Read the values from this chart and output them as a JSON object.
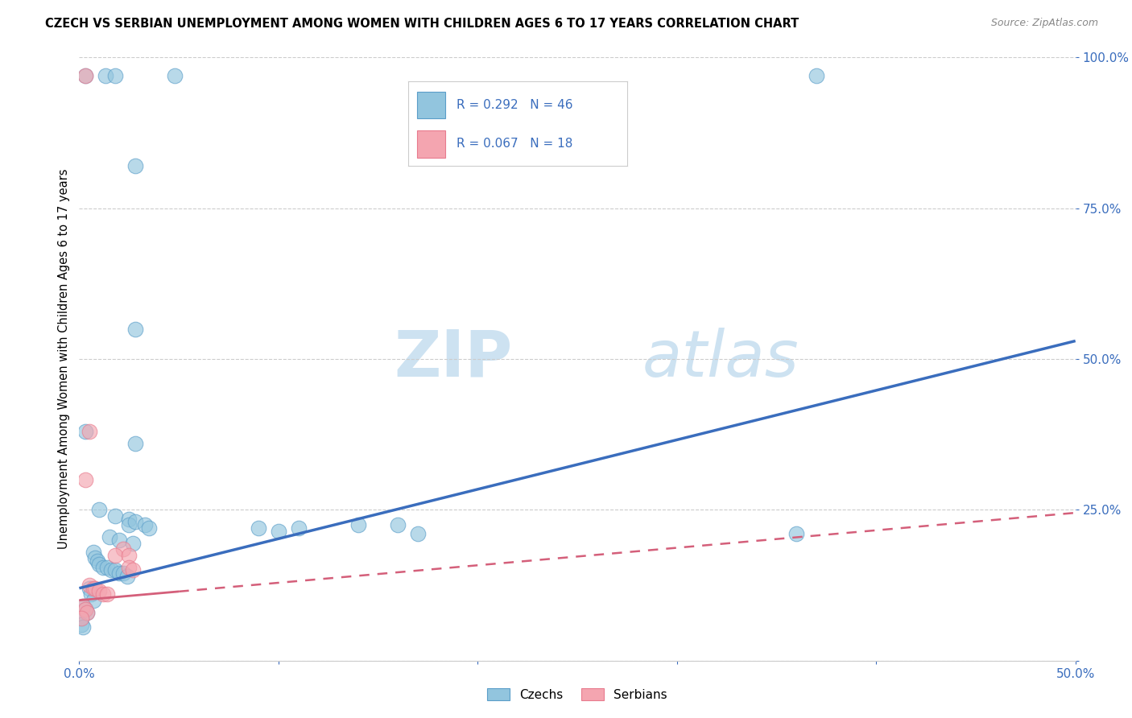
{
  "title": "CZECH VS SERBIAN UNEMPLOYMENT AMONG WOMEN WITH CHILDREN AGES 6 TO 17 YEARS CORRELATION CHART",
  "source": "Source: ZipAtlas.com",
  "ylabel": "Unemployment Among Women with Children Ages 6 to 17 years",
  "x_min": 0.0,
  "x_max": 0.5,
  "y_min": 0.0,
  "y_max": 1.0,
  "y_ticks": [
    0.0,
    0.25,
    0.5,
    0.75,
    1.0
  ],
  "y_tick_labels": [
    "",
    "25.0%",
    "50.0%",
    "75.0%",
    "100.0%"
  ],
  "watermark_zip": "ZIP",
  "watermark_atlas": "atlas",
  "legend_text1": "R = 0.292   N = 46",
  "legend_text2": "R = 0.067   N = 18",
  "czech_color": "#92c5de",
  "serbian_color": "#f4a5b0",
  "czech_edge_color": "#5b9ec9",
  "serbian_edge_color": "#e87b8e",
  "czech_line_color": "#3a6dbd",
  "serbian_line_color": "#d45f7a",
  "czech_scatter": [
    [
      0.003,
      0.97
    ],
    [
      0.013,
      0.97
    ],
    [
      0.018,
      0.97
    ],
    [
      0.048,
      0.97
    ],
    [
      0.37,
      0.97
    ],
    [
      0.028,
      0.82
    ],
    [
      0.028,
      0.55
    ],
    [
      0.003,
      0.38
    ],
    [
      0.028,
      0.36
    ],
    [
      0.01,
      0.25
    ],
    [
      0.018,
      0.24
    ],
    [
      0.025,
      0.235
    ],
    [
      0.025,
      0.225
    ],
    [
      0.028,
      0.23
    ],
    [
      0.033,
      0.225
    ],
    [
      0.035,
      0.22
    ],
    [
      0.09,
      0.22
    ],
    [
      0.1,
      0.215
    ],
    [
      0.11,
      0.22
    ],
    [
      0.14,
      0.225
    ],
    [
      0.16,
      0.225
    ],
    [
      0.17,
      0.21
    ],
    [
      0.36,
      0.21
    ],
    [
      0.015,
      0.205
    ],
    [
      0.02,
      0.2
    ],
    [
      0.027,
      0.195
    ],
    [
      0.007,
      0.18
    ],
    [
      0.008,
      0.17
    ],
    [
      0.009,
      0.165
    ],
    [
      0.01,
      0.16
    ],
    [
      0.012,
      0.155
    ],
    [
      0.014,
      0.155
    ],
    [
      0.016,
      0.15
    ],
    [
      0.018,
      0.15
    ],
    [
      0.02,
      0.145
    ],
    [
      0.022,
      0.145
    ],
    [
      0.024,
      0.14
    ],
    [
      0.005,
      0.12
    ],
    [
      0.006,
      0.11
    ],
    [
      0.007,
      0.1
    ],
    [
      0.002,
      0.09
    ],
    [
      0.003,
      0.085
    ],
    [
      0.004,
      0.08
    ],
    [
      0.001,
      0.07
    ],
    [
      0.001,
      0.06
    ],
    [
      0.002,
      0.055
    ]
  ],
  "serbian_scatter": [
    [
      0.003,
      0.97
    ],
    [
      0.005,
      0.38
    ],
    [
      0.003,
      0.3
    ],
    [
      0.022,
      0.185
    ],
    [
      0.018,
      0.175
    ],
    [
      0.025,
      0.175
    ],
    [
      0.025,
      0.155
    ],
    [
      0.027,
      0.15
    ],
    [
      0.005,
      0.125
    ],
    [
      0.007,
      0.12
    ],
    [
      0.008,
      0.12
    ],
    [
      0.01,
      0.115
    ],
    [
      0.012,
      0.11
    ],
    [
      0.014,
      0.11
    ],
    [
      0.002,
      0.09
    ],
    [
      0.003,
      0.085
    ],
    [
      0.004,
      0.08
    ],
    [
      0.001,
      0.07
    ]
  ],
  "czech_line_x": [
    0.0,
    0.5
  ],
  "czech_line_y": [
    0.12,
    0.53
  ],
  "serbian_line_x": [
    0.0,
    0.5
  ],
  "serbian_line_y": [
    0.1,
    0.245
  ]
}
